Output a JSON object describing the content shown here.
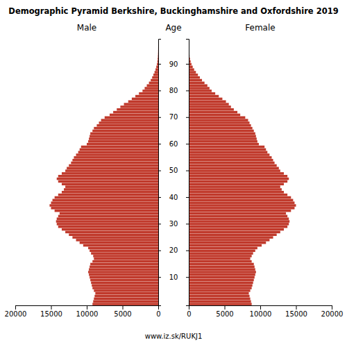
{
  "chart_data": {
    "type": "bar",
    "orientation": "horizontal",
    "title": "Demographic Pyramid Berkshire, Buckinghamshire and Oxfordshire 2019",
    "y_label": "Age",
    "annotations": [
      "www.iz.sk/RUKJ1"
    ],
    "categories": [
      null,
      null,
      null,
      null,
      null,
      null,
      null,
      null,
      null,
      null,
      "10",
      null,
      null,
      null,
      null,
      null,
      null,
      null,
      null,
      null,
      "20",
      null,
      null,
      null,
      null,
      null,
      null,
      null,
      null,
      null,
      "30",
      null,
      null,
      null,
      null,
      null,
      null,
      null,
      null,
      null,
      "40",
      null,
      null,
      null,
      null,
      null,
      null,
      null,
      null,
      null,
      "50",
      null,
      null,
      null,
      null,
      null,
      null,
      null,
      null,
      null,
      "60",
      null,
      null,
      null,
      null,
      null,
      null,
      null,
      null,
      null,
      "70",
      null,
      null,
      null,
      null,
      null,
      null,
      null,
      null,
      null,
      "80",
      null,
      null,
      null,
      null,
      null,
      null,
      null,
      null,
      null,
      "90",
      null,
      null,
      null,
      null,
      null,
      null,
      null,
      null,
      null
    ],
    "series": [
      {
        "name": "Male",
        "color": "#c0392b",
        "values": [
          9200,
          9100,
          9000,
          8900,
          8800,
          9000,
          9200,
          9300,
          9400,
          9500,
          9600,
          9700,
          9800,
          9700,
          9600,
          9500,
          9200,
          9000,
          9100,
          9400,
          9600,
          9800,
          10500,
          11000,
          11500,
          12000,
          12500,
          13000,
          13500,
          14000,
          14200,
          14300,
          14200,
          14000,
          13800,
          14500,
          15000,
          15200,
          15000,
          14800,
          14500,
          14000,
          13500,
          13200,
          13000,
          13500,
          14000,
          14200,
          14000,
          13500,
          13000,
          12800,
          12500,
          12200,
          12000,
          11800,
          11500,
          11200,
          11000,
          10800,
          10000,
          9800,
          9700,
          9600,
          9500,
          9200,
          9000,
          8600,
          8300,
          8000,
          7500,
          6800,
          6300,
          5800,
          5300,
          4800,
          4200,
          3700,
          3200,
          2700,
          2200,
          1900,
          1600,
          1300,
          1050,
          850,
          680,
          520,
          380,
          270,
          180,
          120,
          80,
          50,
          30,
          18,
          10,
          6,
          3,
          1
        ]
      },
      {
        "name": "Female",
        "color": "#c0392b",
        "values": [
          8800,
          8700,
          8600,
          8500,
          8400,
          8600,
          8800,
          8900,
          9000,
          9100,
          9200,
          9300,
          9400,
          9300,
          9200,
          9100,
          8800,
          8600,
          8800,
          9000,
          9300,
          9600,
          10200,
          10800,
          11300,
          11800,
          12300,
          12800,
          13300,
          13800,
          14000,
          14100,
          14000,
          13800,
          13600,
          14300,
          14800,
          15000,
          14800,
          14600,
          14300,
          13800,
          13300,
          13000,
          12800,
          13300,
          13800,
          14000,
          13800,
          13300,
          12800,
          12600,
          12300,
          12000,
          11800,
          11600,
          11300,
          11000,
          10800,
          10600,
          9800,
          9600,
          9500,
          9400,
          9300,
          9100,
          8900,
          8700,
          8500,
          8300,
          7900,
          7200,
          6800,
          6300,
          5900,
          5600,
          5200,
          4700,
          4200,
          3700,
          3200,
          2900,
          2600,
          2200,
          1850,
          1550,
          1280,
          1000,
          750,
          550,
          380,
          260,
          175,
          110,
          65,
          38,
          20,
          12,
          6,
          2
        ]
      }
    ],
    "xlim": [
      0,
      20000
    ],
    "xticks": [
      0,
      5000,
      10000,
      15000,
      20000
    ],
    "grid": false
  }
}
